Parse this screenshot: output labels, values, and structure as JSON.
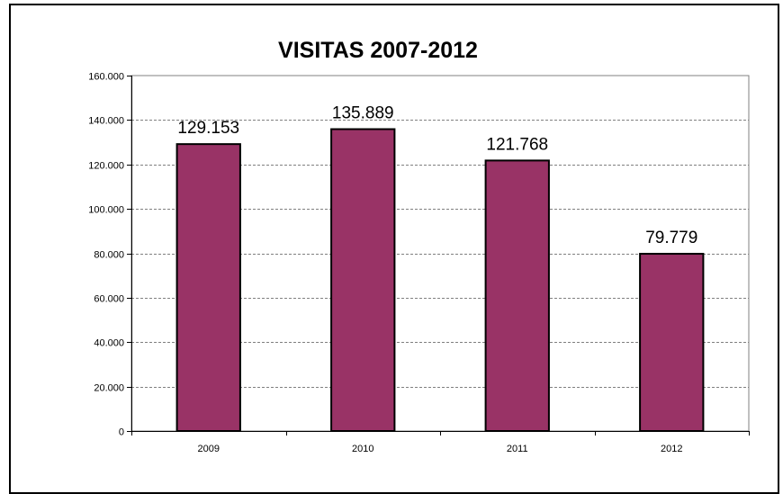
{
  "chart_data": {
    "type": "bar",
    "title": "VISITAS 2007-2012",
    "xlabel": "",
    "ylabel": "",
    "categories": [
      "2009",
      "2010",
      "2011",
      "2012"
    ],
    "values": [
      129153,
      135889,
      121768,
      79779
    ],
    "data_labels": [
      "129.153",
      "135.889",
      "121.768",
      "79.779"
    ],
    "ylim": [
      0,
      160000
    ],
    "yticks": [
      0,
      20000,
      40000,
      60000,
      80000,
      100000,
      120000,
      140000,
      160000
    ],
    "ytick_labels": [
      "0",
      "20.000",
      "40.000",
      "60.000",
      "80.000",
      "100.000",
      "120.000",
      "140.000",
      "160.000"
    ],
    "grid": true,
    "legend": "none",
    "colors": {
      "bar_fill": "#993366",
      "bar_stroke": "#000000",
      "plot_background": "#ffffff",
      "plot_border": "#808080",
      "gridline": "#808080"
    }
  }
}
